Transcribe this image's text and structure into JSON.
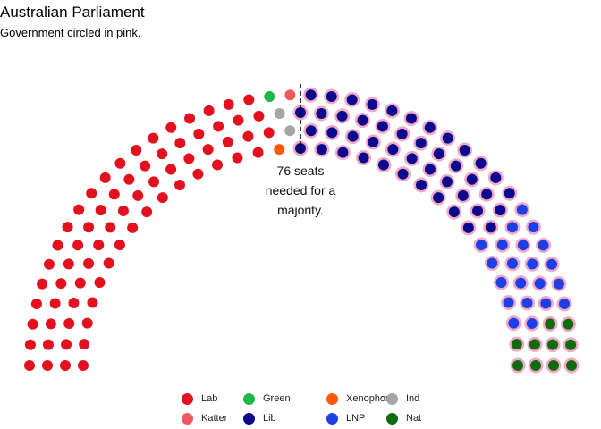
{
  "title": "Australian Parliament",
  "subtitle": "Government circled in pink.",
  "chart_data": {
    "type": "parliament",
    "title": "Australian Parliament",
    "subtitle": "Government circled in pink.",
    "total_seats": 150,
    "majority_threshold": 76,
    "annotation_lines": [
      "76 seats",
      "needed for a",
      "majority."
    ],
    "government_highlight_color": "#f4a9c4",
    "parties": [
      {
        "name": "Lab",
        "seats": 69,
        "color": "#e3101e",
        "government": false
      },
      {
        "name": "Green",
        "seats": 1,
        "color": "#1fb64a",
        "government": false
      },
      {
        "name": "Xenophon",
        "seats": 1,
        "color": "#ff5a0a",
        "government": false
      },
      {
        "name": "Ind",
        "seats": 2,
        "color": "#a5a5a5",
        "government": false
      },
      {
        "name": "Katter",
        "seats": 1,
        "color": "#f05a5a",
        "government": false
      },
      {
        "name": "Lib",
        "seats": 45,
        "color": "#0b0a8e",
        "government": true
      },
      {
        "name": "LNP",
        "seats": 21,
        "color": "#1f3fe6",
        "government": true
      },
      {
        "name": "Nat",
        "seats": 10,
        "color": "#0f6b0f",
        "government": true
      }
    ],
    "legend": [
      {
        "label": "Lab",
        "color": "#e3101e"
      },
      {
        "label": "Green",
        "color": "#1fb64a"
      },
      {
        "label": "Xenophon",
        "color": "#ff5a0a"
      },
      {
        "label": "Ind",
        "color": "#a5a5a5"
      },
      {
        "label": "Katter",
        "color": "#f05a5a"
      },
      {
        "label": "Lib",
        "color": "#0b0a8e"
      },
      {
        "label": "LNP",
        "color": "#1f3fe6"
      },
      {
        "label": "Nat",
        "color": "#0f6b0f"
      }
    ],
    "legend_position": "bottom"
  }
}
